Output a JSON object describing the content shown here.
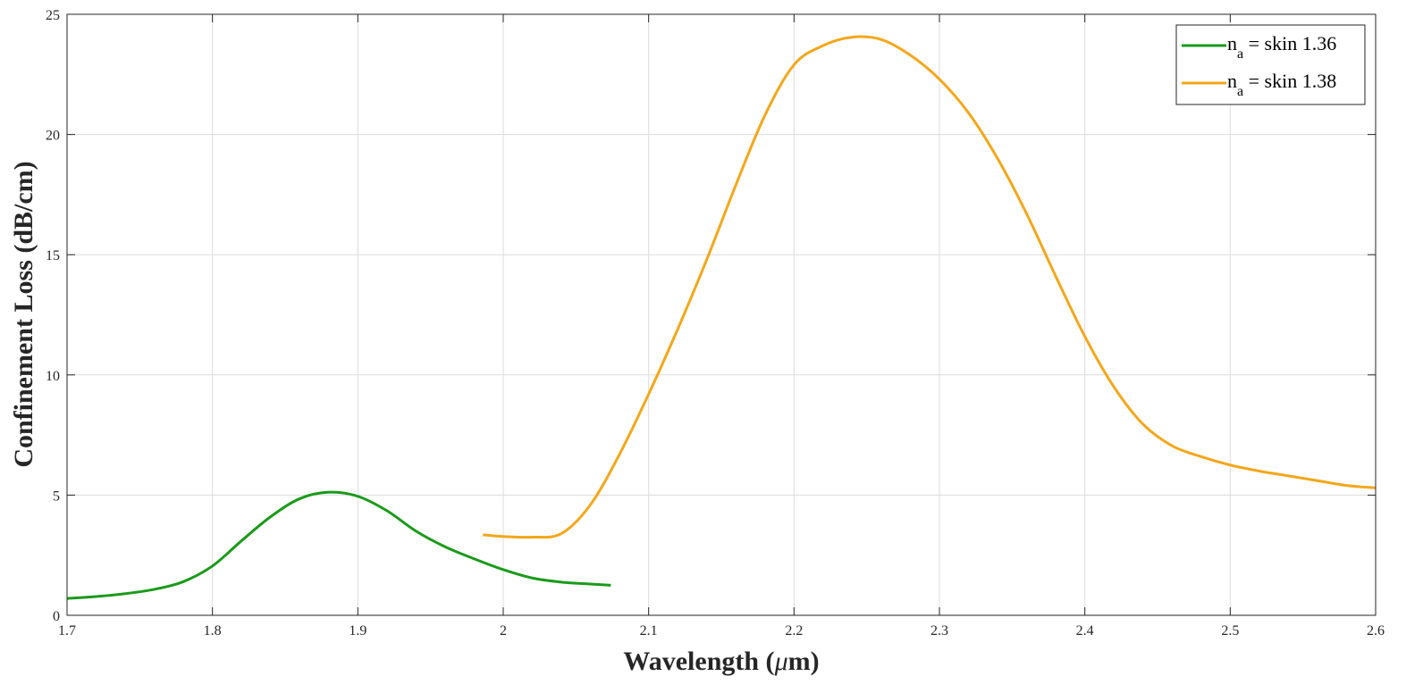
{
  "chart_data": {
    "type": "line",
    "xlabel_main": "Wavelength (",
    "xlabel_mu": "μ",
    "xlabel_end": "m)",
    "ylabel": "Confinement Loss (dB/cm)",
    "xlim": [
      1.7,
      2.6
    ],
    "ylim": [
      0,
      25
    ],
    "xticks": [
      "1.7",
      "1.8",
      "1.9",
      "2",
      "2.1",
      "2.2",
      "2.3",
      "2.4",
      "2.5",
      "2.6"
    ],
    "yticks": [
      "0",
      "5",
      "10",
      "15",
      "20",
      "25"
    ],
    "grid": true,
    "legend_position": "top-right",
    "series": [
      {
        "name_n": "n",
        "name_sub": "a",
        "name_rest": " = skin 1.36",
        "color": "#1a9a1a",
        "x": [
          1.7,
          1.72,
          1.74,
          1.76,
          1.78,
          1.8,
          1.82,
          1.84,
          1.86,
          1.88,
          1.9,
          1.92,
          1.94,
          1.96,
          1.98,
          2.0,
          2.02,
          2.04,
          2.06,
          2.074
        ],
        "y": [
          0.7,
          0.78,
          0.9,
          1.08,
          1.4,
          2.05,
          3.1,
          4.1,
          4.85,
          5.12,
          4.95,
          4.35,
          3.5,
          2.85,
          2.35,
          1.9,
          1.55,
          1.38,
          1.3,
          1.25
        ]
      },
      {
        "name_n": "n",
        "name_sub": "a",
        "name_rest": " = skin 1.38",
        "color": "#f2a71b",
        "x": [
          1.986,
          2.0,
          2.02,
          2.04,
          2.06,
          2.08,
          2.1,
          2.12,
          2.14,
          2.16,
          2.18,
          2.2,
          2.22,
          2.24,
          2.26,
          2.28,
          2.3,
          2.32,
          2.34,
          2.36,
          2.38,
          2.4,
          2.42,
          2.44,
          2.46,
          2.48,
          2.5,
          2.52,
          2.54,
          2.56,
          2.58,
          2.6
        ],
        "y": [
          3.35,
          3.28,
          3.25,
          3.4,
          4.6,
          6.7,
          9.2,
          11.9,
          14.8,
          17.9,
          20.8,
          22.9,
          23.7,
          24.05,
          23.95,
          23.3,
          22.3,
          20.9,
          19.0,
          16.7,
          14.1,
          11.6,
          9.5,
          7.95,
          7.05,
          6.6,
          6.25,
          6.0,
          5.8,
          5.6,
          5.4,
          5.3
        ]
      }
    ]
  }
}
